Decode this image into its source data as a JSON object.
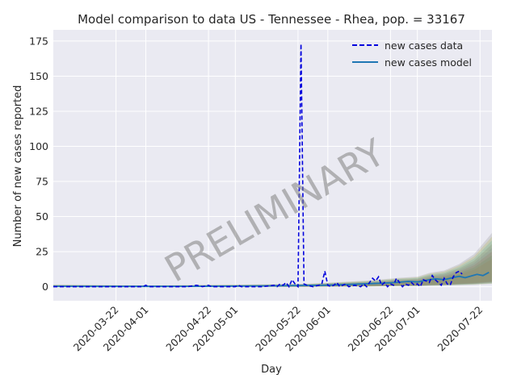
{
  "chart_data": {
    "type": "line",
    "title": "Model comparison to data US - Tennessee - Rhea, pop. = 33167",
    "xlabel": "Day",
    "ylabel": "Number of new cases reported",
    "watermark": "PRELIMINARY",
    "x_start": "2020-03-01",
    "x_end": "2020-07-26",
    "ylim": [
      -10,
      183
    ],
    "yticks": [
      0,
      25,
      50,
      75,
      100,
      125,
      150,
      175
    ],
    "xticks": [
      "2020-03-22",
      "2020-04-01",
      "2020-04-22",
      "2020-05-01",
      "2020-05-22",
      "2020-06-01",
      "2020-06-22",
      "2020-07-01",
      "2020-07-22"
    ],
    "grid": true,
    "legend_position": "top-right",
    "colors": {
      "data": "#0000dd",
      "model": "#1f77b4",
      "background": "#eaeaf2",
      "grid": "#ffffff"
    },
    "series": [
      {
        "name": "new cases data",
        "style": "dashed",
        "points": [
          [
            "2020-03-01",
            0
          ],
          [
            "2020-03-10",
            0
          ],
          [
            "2020-03-20",
            0
          ],
          [
            "2020-03-31",
            0
          ],
          [
            "2020-04-01",
            1
          ],
          [
            "2020-04-02",
            0
          ],
          [
            "2020-04-15",
            0
          ],
          [
            "2020-04-18",
            1
          ],
          [
            "2020-04-20",
            0
          ],
          [
            "2020-04-22",
            1
          ],
          [
            "2020-04-23",
            0
          ],
          [
            "2020-05-01",
            0
          ],
          [
            "2020-05-02",
            1
          ],
          [
            "2020-05-03",
            0
          ],
          [
            "2020-05-10",
            0
          ],
          [
            "2020-05-14",
            1
          ],
          [
            "2020-05-15",
            0
          ],
          [
            "2020-05-16",
            2
          ],
          [
            "2020-05-17",
            1
          ],
          [
            "2020-05-18",
            3
          ],
          [
            "2020-05-19",
            0
          ],
          [
            "2020-05-20",
            5
          ],
          [
            "2020-05-21",
            2
          ],
          [
            "2020-05-22",
            0
          ],
          [
            "2020-05-23",
            173
          ],
          [
            "2020-05-24",
            2
          ],
          [
            "2020-05-25",
            1
          ],
          [
            "2020-05-27",
            0
          ],
          [
            "2020-05-29",
            1
          ],
          [
            "2020-05-30",
            2
          ],
          [
            "2020-05-31",
            11
          ],
          [
            "2020-06-01",
            1
          ],
          [
            "2020-06-02",
            0
          ],
          [
            "2020-06-03",
            1
          ],
          [
            "2020-06-04",
            3
          ],
          [
            "2020-06-05",
            0
          ],
          [
            "2020-06-06",
            1
          ],
          [
            "2020-06-07",
            2
          ],
          [
            "2020-06-08",
            0
          ],
          [
            "2020-06-10",
            1
          ],
          [
            "2020-06-12",
            0
          ],
          [
            "2020-06-13",
            2
          ],
          [
            "2020-06-14",
            0
          ],
          [
            "2020-06-16",
            6
          ],
          [
            "2020-06-17",
            4
          ],
          [
            "2020-06-18",
            7
          ],
          [
            "2020-06-19",
            1
          ],
          [
            "2020-06-20",
            3
          ],
          [
            "2020-06-21",
            0
          ],
          [
            "2020-06-22",
            2
          ],
          [
            "2020-06-23",
            1
          ],
          [
            "2020-06-24",
            6
          ],
          [
            "2020-06-25",
            3
          ],
          [
            "2020-06-26",
            0
          ],
          [
            "2020-06-27",
            2
          ],
          [
            "2020-06-28",
            1
          ],
          [
            "2020-06-29",
            3
          ],
          [
            "2020-06-30",
            1
          ],
          [
            "2020-07-01",
            2
          ],
          [
            "2020-07-02",
            0
          ],
          [
            "2020-07-03",
            5
          ],
          [
            "2020-07-04",
            4
          ],
          [
            "2020-07-05",
            3
          ],
          [
            "2020-07-06",
            8
          ],
          [
            "2020-07-07",
            5
          ],
          [
            "2020-07-08",
            3
          ],
          [
            "2020-07-09",
            1
          ],
          [
            "2020-07-10",
            6
          ],
          [
            "2020-07-11",
            2
          ],
          [
            "2020-07-12",
            1
          ],
          [
            "2020-07-13",
            7
          ],
          [
            "2020-07-14",
            10
          ],
          [
            "2020-07-15",
            11
          ],
          [
            "2020-07-16",
            9
          ]
        ]
      },
      {
        "name": "new cases model",
        "style": "solid",
        "points": [
          [
            "2020-03-01",
            0.3
          ],
          [
            "2020-03-15",
            0.2
          ],
          [
            "2020-04-01",
            0.2
          ],
          [
            "2020-04-20",
            0.3
          ],
          [
            "2020-05-01",
            0.4
          ],
          [
            "2020-05-15",
            0.6
          ],
          [
            "2020-05-25",
            0.9
          ],
          [
            "2020-06-01",
            1.1
          ],
          [
            "2020-06-05",
            1.4
          ],
          [
            "2020-06-10",
            1.8
          ],
          [
            "2020-06-15",
            2.2
          ],
          [
            "2020-06-20",
            2.6
          ],
          [
            "2020-06-25",
            3.2
          ],
          [
            "2020-06-28",
            3.8
          ],
          [
            "2020-07-01",
            3.4
          ],
          [
            "2020-07-04",
            4.6
          ],
          [
            "2020-07-07",
            5.6
          ],
          [
            "2020-07-10",
            5.0
          ],
          [
            "2020-07-13",
            6.5
          ],
          [
            "2020-07-15",
            7.4
          ],
          [
            "2020-07-17",
            6.4
          ],
          [
            "2020-07-19",
            7.6
          ],
          [
            "2020-07-21",
            8.8
          ],
          [
            "2020-07-23",
            7.9
          ],
          [
            "2020-07-25",
            10.2
          ]
        ]
      }
    ],
    "model_band": {
      "x": [
        "2020-03-01",
        "2020-04-01",
        "2020-05-01",
        "2020-05-25",
        "2020-06-05",
        "2020-06-15",
        "2020-06-25",
        "2020-07-01",
        "2020-07-05",
        "2020-07-10",
        "2020-07-15",
        "2020-07-20",
        "2020-07-26"
      ],
      "low": [
        0,
        0,
        0,
        0,
        0.2,
        0.4,
        0.8,
        0.8,
        1.2,
        1.5,
        2.0,
        2.5,
        3.5
      ],
      "high": [
        1.2,
        0.8,
        1.2,
        1.8,
        2.8,
        3.8,
        5.5,
        6.2,
        8.5,
        10,
        14,
        20,
        33
      ]
    }
  }
}
